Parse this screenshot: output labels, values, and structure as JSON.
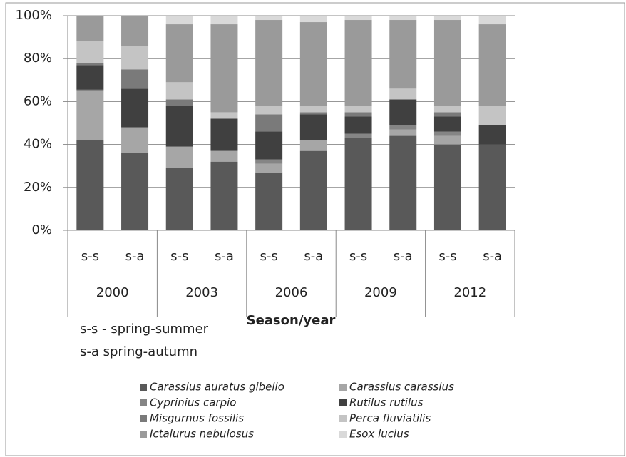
{
  "chart_data": {
    "type": "stacked_bar",
    "categories": [
      "s-s",
      "s-a",
      "s-s",
      "s-a",
      "s-s",
      "s-a",
      "s-s",
      "s-a",
      "s-s",
      "s-a"
    ],
    "groups": [
      "2000",
      "2003",
      "2006",
      "2009",
      "2012"
    ],
    "x_label": "Season/year",
    "notes": [
      "s-s - spring-summer",
      "s-a spring-autumn"
    ],
    "ylim": [
      0,
      100
    ],
    "yticks": [
      {
        "value": 0,
        "label": "0%"
      },
      {
        "value": 20,
        "label": "20%"
      },
      {
        "value": 40,
        "label": "40%"
      },
      {
        "value": 60,
        "label": "60%"
      },
      {
        "value": 80,
        "label": "80%"
      },
      {
        "value": 100,
        "label": "100%"
      }
    ],
    "grid": true,
    "series": [
      {
        "name": "Carassius auratus gibelio",
        "color": "#595959",
        "values": [
          42,
          36,
          29,
          32,
          27,
          37,
          43,
          44,
          40,
          40
        ]
      },
      {
        "name": "Carassius carassius",
        "color": "#a6a6a6",
        "values": [
          23,
          12,
          10,
          5,
          4,
          5,
          0,
          3,
          4,
          0
        ]
      },
      {
        "name": "Cyprinius carpio",
        "color": "#858585",
        "values": [
          0.5,
          0,
          0,
          0,
          2,
          0,
          2,
          2,
          2,
          0
        ]
      },
      {
        "name": "Rutilus rutilus",
        "color": "#404040",
        "values": [
          11.5,
          18,
          19,
          15,
          13,
          12,
          8,
          12,
          7,
          9
        ]
      },
      {
        "name": "Misgurnus fossilis",
        "color": "#7a7a7a",
        "values": [
          1,
          9,
          3,
          0,
          8,
          1,
          2,
          0,
          2,
          0
        ]
      },
      {
        "name": "Perca fluviatilis",
        "color": "#c4c4c4",
        "values": [
          10,
          11,
          8,
          3,
          4,
          3,
          3,
          5,
          3,
          9
        ]
      },
      {
        "name": "Ictalurus nebulosus",
        "color": "#9a9a9a",
        "values": [
          12,
          14,
          27,
          41,
          40,
          39,
          40,
          32,
          40,
          38
        ]
      },
      {
        "name": "Esox lucius",
        "color": "#d9d9d9",
        "values": [
          0,
          0,
          4,
          4,
          2,
          3,
          2,
          2,
          2,
          4
        ]
      }
    ]
  }
}
